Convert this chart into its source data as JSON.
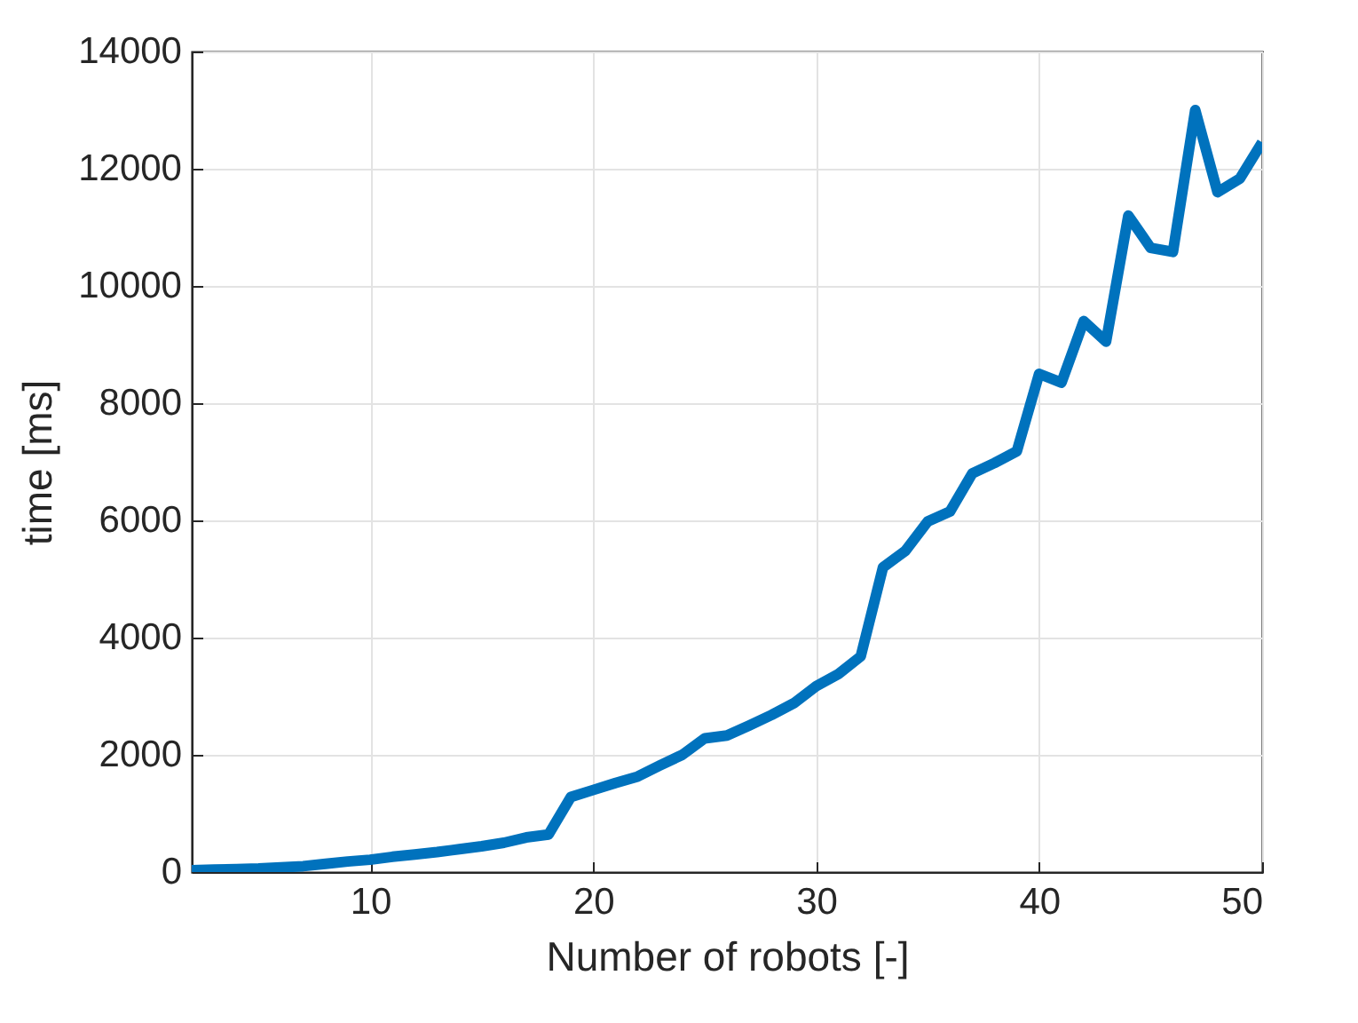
{
  "chart_data": {
    "type": "line",
    "xlabel": "Number of robots [-]",
    "ylabel": "time [ms]",
    "x": [
      2,
      3,
      4,
      5,
      6,
      7,
      8,
      9,
      10,
      11,
      12,
      13,
      14,
      15,
      16,
      17,
      18,
      19,
      20,
      21,
      22,
      23,
      24,
      25,
      26,
      27,
      28,
      29,
      30,
      31,
      32,
      33,
      34,
      35,
      36,
      37,
      38,
      39,
      40,
      41,
      42,
      43,
      44,
      45,
      46,
      47,
      48,
      49,
      50
    ],
    "series": [
      {
        "color": "#0072bd",
        "values": [
          30,
          40,
          50,
          60,
          80,
          100,
          140,
          180,
          210,
          260,
          300,
          340,
          390,
          440,
          500,
          590,
          640,
          1280,
          1400,
          1520,
          1630,
          1820,
          2000,
          2280,
          2330,
          2500,
          2680,
          2880,
          3170,
          3380,
          3680,
          5200,
          5480,
          5980,
          6150,
          6800,
          6980,
          7180,
          8500,
          8350,
          9400,
          9050,
          11200,
          10650,
          10580,
          13000,
          11600,
          11830,
          12450
        ]
      }
    ],
    "xlim": [
      2,
      50
    ],
    "xticks": [
      10,
      20,
      30,
      40,
      50
    ],
    "ylim": [
      0,
      14000
    ],
    "yticks": [
      0,
      2000,
      4000,
      6000,
      8000,
      10000,
      12000,
      14000
    ],
    "grid": true,
    "line_style": "solid",
    "marker": "none"
  }
}
